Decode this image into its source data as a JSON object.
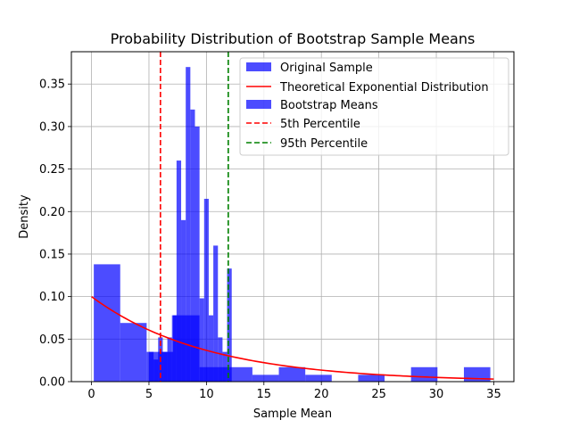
{
  "chart_data": {
    "type": "bar",
    "title": "Probability Distribution of Bootstrap Sample Means",
    "xlabel": "Sample Mean",
    "ylabel": "Density",
    "xlim": [
      -1.75,
      36.75
    ],
    "ylim": [
      0,
      0.388
    ],
    "xticks": [
      0,
      5,
      10,
      15,
      20,
      25,
      30,
      35
    ],
    "yticks": [
      0.0,
      0.05,
      0.1,
      0.15,
      0.2,
      0.25,
      0.3,
      0.35
    ],
    "grid": true,
    "legend_position": "top-right",
    "colors": {
      "histogram": "#0000ff",
      "theoretical": "#ff0000",
      "p5": "#ff0000",
      "p95": "#008000"
    },
    "series": [
      {
        "name": "Original Sample",
        "kind": "histogram",
        "bins": [
          {
            "x0": 0.2,
            "x1": 2.5,
            "y": 0.138
          },
          {
            "x0": 2.5,
            "x1": 4.8,
            "y": 0.069
          },
          {
            "x0": 4.8,
            "x1": 7.1,
            "y": 0.035
          },
          {
            "x0": 7.1,
            "x1": 9.4,
            "y": 0.078
          },
          {
            "x0": 9.4,
            "x1": 11.7,
            "y": 0.017
          },
          {
            "x0": 11.7,
            "x1": 14.0,
            "y": 0.017
          },
          {
            "x0": 14.0,
            "x1": 16.3,
            "y": 0.008
          },
          {
            "x0": 16.3,
            "x1": 18.6,
            "y": 0.017
          },
          {
            "x0": 18.6,
            "x1": 20.9,
            "y": 0.008
          },
          {
            "x0": 20.9,
            "x1": 23.2,
            "y": 0.0
          },
          {
            "x0": 23.2,
            "x1": 25.5,
            "y": 0.008
          },
          {
            "x0": 25.5,
            "x1": 27.8,
            "y": 0.0
          },
          {
            "x0": 27.8,
            "x1": 30.1,
            "y": 0.017
          },
          {
            "x0": 30.1,
            "x1": 32.4,
            "y": 0.0
          },
          {
            "x0": 32.4,
            "x1": 34.7,
            "y": 0.017
          }
        ]
      },
      {
        "name": "Theoretical Exponential Distribution",
        "kind": "curve",
        "function": "exponential",
        "rate": 0.1,
        "x_range": [
          0,
          35
        ]
      },
      {
        "name": "Bootstrap Means",
        "kind": "histogram",
        "bins": [
          {
            "x0": 5.0,
            "x1": 5.4,
            "y": 0.035
          },
          {
            "x0": 5.4,
            "x1": 5.8,
            "y": 0.026
          },
          {
            "x0": 5.8,
            "x1": 6.2,
            "y": 0.052
          },
          {
            "x0": 6.2,
            "x1": 6.6,
            "y": 0.035
          },
          {
            "x0": 6.6,
            "x1": 7.0,
            "y": 0.052
          },
          {
            "x0": 7.0,
            "x1": 7.4,
            "y": 0.078
          },
          {
            "x0": 7.4,
            "x1": 7.8,
            "y": 0.26
          },
          {
            "x0": 7.8,
            "x1": 8.2,
            "y": 0.19
          },
          {
            "x0": 8.2,
            "x1": 8.6,
            "y": 0.37
          },
          {
            "x0": 8.6,
            "x1": 9.0,
            "y": 0.32
          },
          {
            "x0": 9.0,
            "x1": 9.4,
            "y": 0.3
          },
          {
            "x0": 9.4,
            "x1": 9.8,
            "y": 0.098
          },
          {
            "x0": 9.8,
            "x1": 10.2,
            "y": 0.215
          },
          {
            "x0": 10.2,
            "x1": 10.6,
            "y": 0.078
          },
          {
            "x0": 10.6,
            "x1": 11.0,
            "y": 0.16
          },
          {
            "x0": 11.0,
            "x1": 11.4,
            "y": 0.052
          },
          {
            "x0": 11.4,
            "x1": 11.8,
            "y": 0.035
          },
          {
            "x0": 11.8,
            "x1": 12.2,
            "y": 0.133
          }
        ]
      },
      {
        "name": "5th Percentile",
        "kind": "vline",
        "x": 6.0,
        "style": "dashed"
      },
      {
        "name": "95th Percentile",
        "kind": "vline",
        "x": 11.9,
        "style": "dashed"
      }
    ]
  }
}
